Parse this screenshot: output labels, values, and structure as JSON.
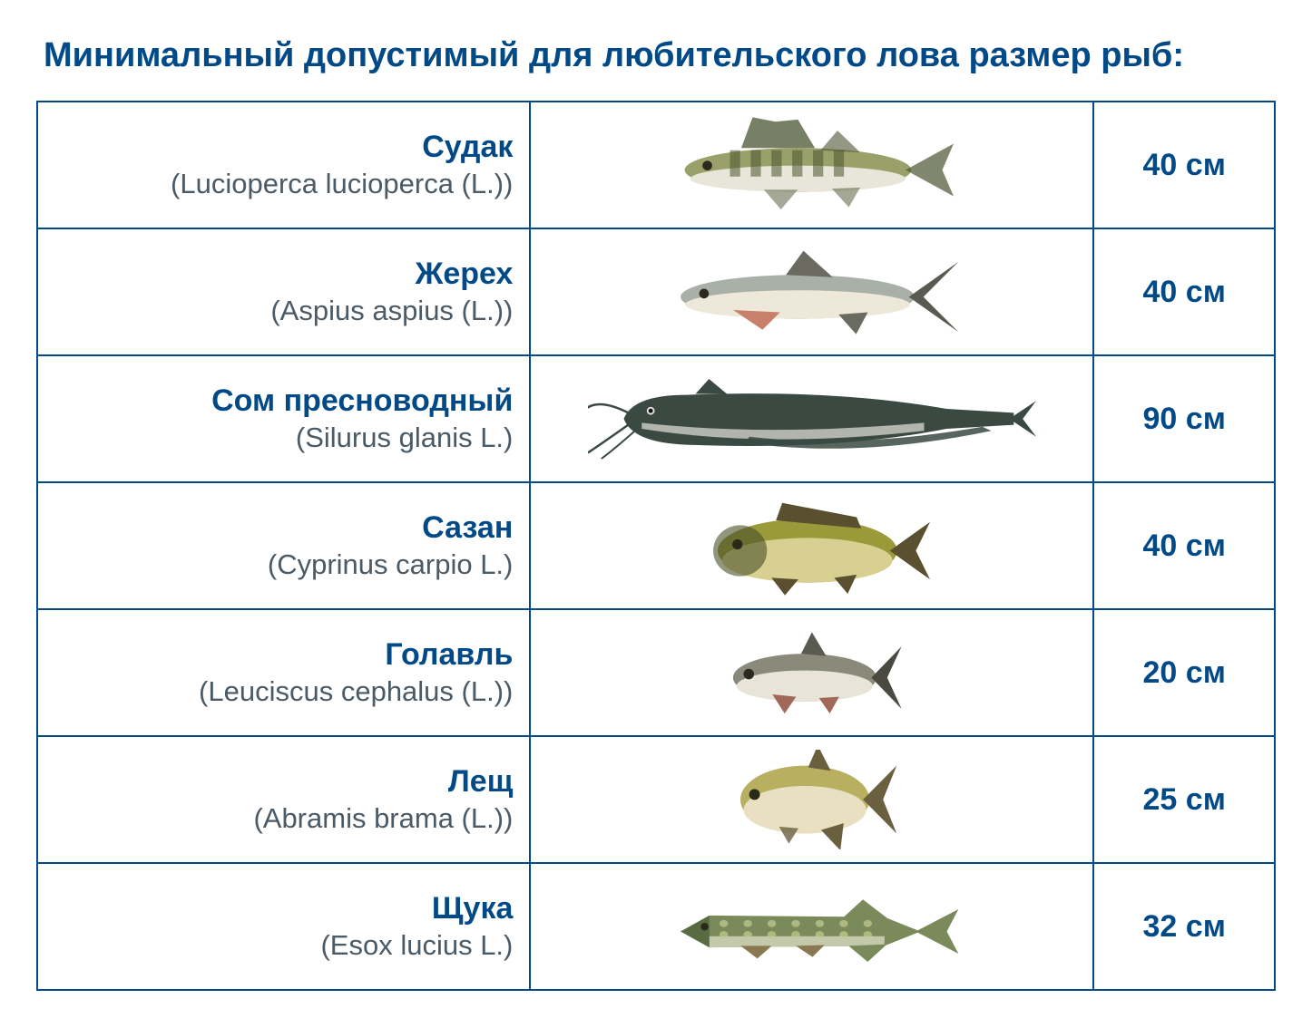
{
  "title": "Минимальный допустимый для любительского лова размер рыб:",
  "colors": {
    "primary": "#014a87",
    "text_secondary": "#4a5a66",
    "border": "#014a87",
    "background": "#ffffff"
  },
  "table": {
    "rows": [
      {
        "common_name": "Судак",
        "latin_name": "(Lucioperca lucioperca (L.))",
        "size": "40 см",
        "fish": {
          "shape": "zander",
          "body_color": "#9aa06a",
          "belly_color": "#e8e6d8",
          "stripe_color": "#4a5430",
          "width_pct": 60
        }
      },
      {
        "common_name": "Жерех",
        "latin_name": "(Aspius aspius (L.))",
        "size": "40 см",
        "fish": {
          "shape": "asp",
          "body_color": "#a8b0a8",
          "belly_color": "#ede8da",
          "fin_color": "#c8806a",
          "width_pct": 62
        }
      },
      {
        "common_name": "Сом пресноводный",
        "latin_name": "(Silurus glanis L.)",
        "size": "90 см",
        "fish": {
          "shape": "catfish",
          "body_color": "#3a4a42",
          "belly_color": "#d0cfc8",
          "width_pct": 95
        }
      },
      {
        "common_name": "Сазан",
        "latin_name": "(Cyprinus carpio L.)",
        "size": "40 см",
        "fish": {
          "shape": "carp",
          "body_color": "#9a9a3a",
          "belly_color": "#d8d090",
          "fin_color": "#5a5030",
          "width_pct": 50
        }
      },
      {
        "common_name": "Голавль",
        "latin_name": "(Leuciscus cephalus (L.))",
        "size": "20 см",
        "fish": {
          "shape": "chub",
          "body_color": "#8a8a7a",
          "belly_color": "#e8e4d8",
          "fin_color": "#a06858",
          "width_pct": 38
        }
      },
      {
        "common_name": "Лещ",
        "latin_name": "(Abramis brama (L.))",
        "size": "25 см",
        "fish": {
          "shape": "bream",
          "body_color": "#b8b060",
          "belly_color": "#e8e0c0",
          "fin_color": "#6a6040",
          "width_pct": 36
        }
      },
      {
        "common_name": "Щука",
        "latin_name": "(Esox lucius L.)",
        "size": "32 см",
        "fish": {
          "shape": "pike",
          "body_color": "#7a8a5a",
          "belly_color": "#d8d8c0",
          "spot_color": "#c0c890",
          "width_pct": 62
        }
      }
    ]
  }
}
